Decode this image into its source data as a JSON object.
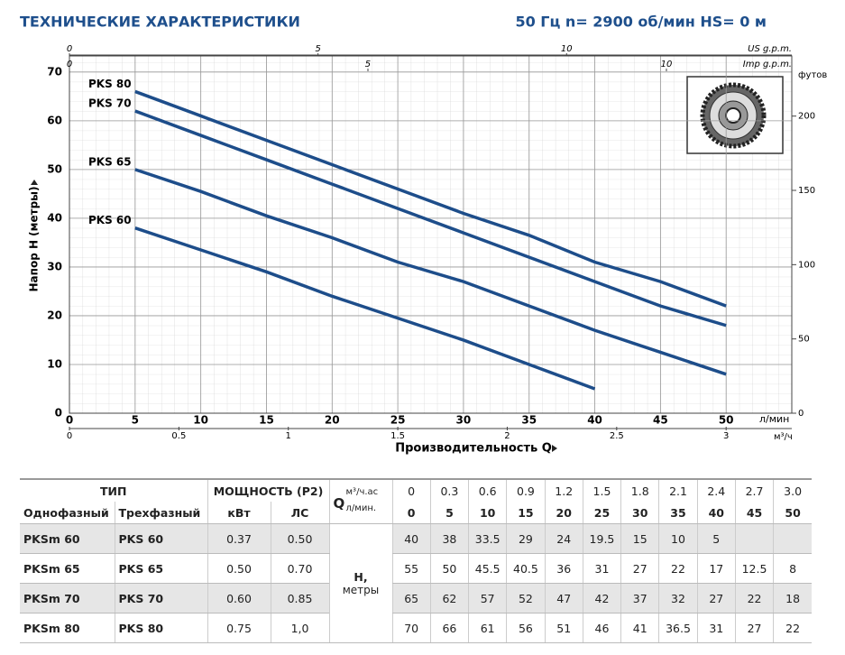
{
  "header": {
    "title": "ТЕХНИЧЕСКИЕ ХАРАКТЕРИСТИКИ",
    "subtitle": "50 Гц n= 2900 об/мин HS= 0 м"
  },
  "chart_data": {
    "type": "line",
    "x_label": "Производительность Q",
    "x_unit": "л/мин",
    "y_label": "Напор H (метры)",
    "x": [
      5,
      10,
      15,
      20,
      25,
      30,
      35,
      40,
      45,
      50
    ],
    "series": [
      {
        "name": "PKS 80",
        "color": "#1d4d8a",
        "values": [
          66,
          61,
          56,
          51,
          46,
          41,
          36.5,
          31,
          27,
          22
        ]
      },
      {
        "name": "PKS 70",
        "color": "#1d4d8a",
        "values": [
          62,
          57,
          52,
          47,
          42,
          37,
          32,
          27,
          22,
          18
        ]
      },
      {
        "name": "PKS 65",
        "color": "#1d4d8a",
        "values": [
          50,
          45.5,
          40.5,
          36,
          31,
          27,
          22,
          17,
          12.5,
          8
        ]
      },
      {
        "name": "PKS 60",
        "color": "#1d4d8a",
        "values": [
          38,
          33.5,
          29,
          24,
          19.5,
          15,
          10,
          5,
          null,
          null
        ]
      }
    ],
    "xlim": [
      0,
      55
    ],
    "xticks": [
      0,
      5,
      10,
      15,
      20,
      25,
      30,
      35,
      40,
      45,
      50
    ],
    "ylim": [
      0,
      73.3
    ],
    "yticks": [
      0,
      10,
      20,
      30,
      40,
      50,
      60,
      70
    ],
    "y2lim": [
      0,
      240.5
    ],
    "y2ticks": [
      0,
      50,
      100,
      150,
      200
    ],
    "y2_label": "футов",
    "top_axes": [
      {
        "label": "US g.p.m.",
        "xlim": [
          0,
          14.53
        ],
        "xticks": [
          0,
          5,
          10
        ]
      },
      {
        "label": "Imp g.p.m.",
        "xlim": [
          0,
          12.1
        ],
        "xticks": [
          0,
          5,
          10
        ]
      }
    ],
    "bottom_axis": {
      "label": "м³/ч",
      "xlim": [
        0,
        3.3
      ],
      "xticks": [
        0,
        0.5,
        1,
        1.5,
        2,
        2.5,
        3
      ]
    },
    "grid": true
  },
  "table": {
    "type_header": "ТИП",
    "power_header": "МОЩНОСТЬ (P2)",
    "columns": [
      "Однофазный",
      "Трехфазный",
      "кВт",
      "ЛС"
    ],
    "q_label": "Q",
    "q_units": [
      "м³/ч.ас",
      "л/мин."
    ],
    "flow_m3h": [
      "0",
      "0.3",
      "0.6",
      "0.9",
      "1.2",
      "1.5",
      "1.8",
      "2.1",
      "2.4",
      "2.7",
      "3.0"
    ],
    "flow_lmin": [
      "0",
      "5",
      "10",
      "15",
      "20",
      "25",
      "30",
      "35",
      "40",
      "45",
      "50"
    ],
    "head_label": "H,",
    "head_unit": "метры",
    "rows": [
      {
        "single": "PKSm 60",
        "three": "PKS 60",
        "kw": "0.37",
        "hp": "0.50",
        "head": [
          "40",
          "38",
          "33.5",
          "29",
          "24",
          "19.5",
          "15",
          "10",
          "5"
        ]
      },
      {
        "single": "PKSm 65",
        "three": "PKS 65",
        "kw": "0.50",
        "hp": "0.70",
        "head": [
          "55",
          "50",
          "45.5",
          "40.5",
          "36",
          "31",
          "27",
          "22",
          "17",
          "12.5",
          "8"
        ]
      },
      {
        "single": "PKSm 70",
        "three": "PKS 70",
        "kw": "0.60",
        "hp": "0.85",
        "head": [
          "65",
          "62",
          "57",
          "52",
          "47",
          "42",
          "37",
          "32",
          "27",
          "22",
          "18"
        ]
      },
      {
        "single": "PKSm 80",
        "three": "PKS 80",
        "kw": "0.75",
        "hp": "1,0",
        "head": [
          "70",
          "66",
          "61",
          "56",
          "51",
          "46",
          "41",
          "36.5",
          "31",
          "27",
          "22"
        ]
      }
    ]
  }
}
